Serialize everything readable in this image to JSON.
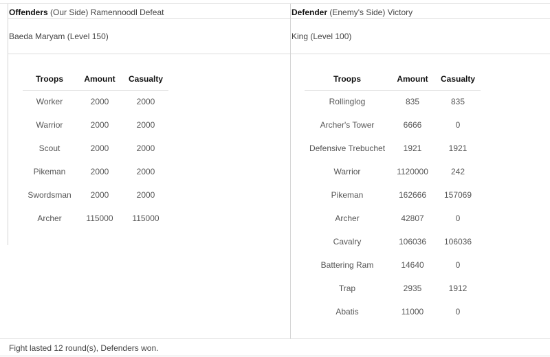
{
  "offender": {
    "label": "Offenders",
    "side": "(Our Side) Ramennoodl Defeat",
    "commander": "Baeda Maryam (Level 150)",
    "headers": [
      "Troops",
      "Amount",
      "Casualty"
    ],
    "rows": [
      [
        "Worker",
        "2000",
        "2000"
      ],
      [
        "Warrior",
        "2000",
        "2000"
      ],
      [
        "Scout",
        "2000",
        "2000"
      ],
      [
        "Pikeman",
        "2000",
        "2000"
      ],
      [
        "Swordsman",
        "2000",
        "2000"
      ],
      [
        "Archer",
        "115000",
        "115000"
      ]
    ]
  },
  "defender": {
    "label": "Defender",
    "side": "(Enemy's Side) Victory",
    "commander": "King (Level 100)",
    "headers": [
      "Troops",
      "Amount",
      "Casualty"
    ],
    "rows": [
      [
        "Rollinglog",
        "835",
        "835"
      ],
      [
        "Archer's Tower",
        "6666",
        "0"
      ],
      [
        "Defensive Trebuchet",
        "1921",
        "1921"
      ],
      [
        "Warrior",
        "1120000",
        "242"
      ],
      [
        "Pikeman",
        "162666",
        "157069"
      ],
      [
        "Archer",
        "42807",
        "0"
      ],
      [
        "Cavalry",
        "106036",
        "106036"
      ],
      [
        "Battering Ram",
        "14640",
        "0"
      ],
      [
        "Trap",
        "2935",
        "1912"
      ],
      [
        "Abatis",
        "11000",
        "0"
      ]
    ]
  },
  "footer": "Fight lasted 12 round(s), Defenders won."
}
